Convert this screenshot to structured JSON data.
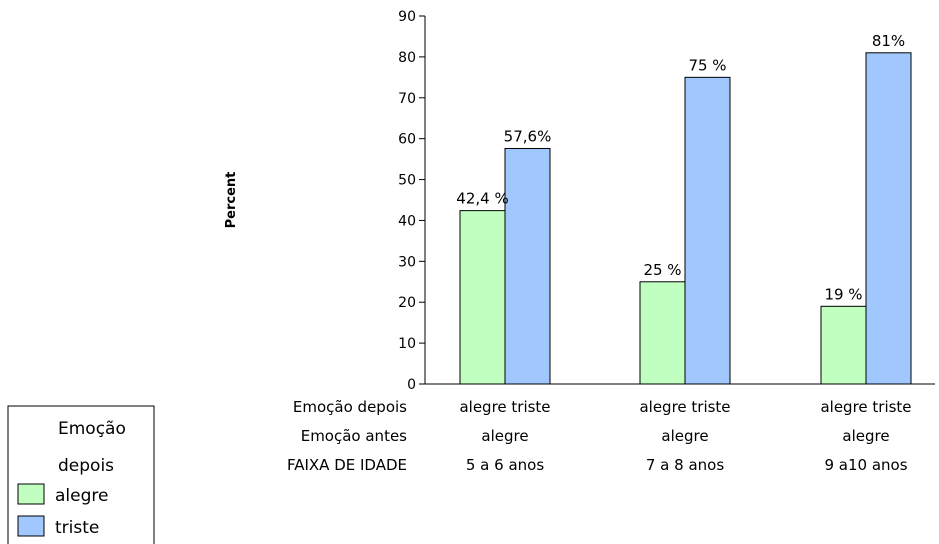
{
  "chart_data": {
    "type": "bar",
    "title": "",
    "ylabel": "Percent",
    "ylim": [
      0,
      90
    ],
    "yticks": [
      0,
      10,
      20,
      30,
      40,
      50,
      60,
      70,
      80,
      90
    ],
    "grid": false,
    "legend_position": "bottom-left",
    "row_headers": [
      "Emoção depois",
      "Emoção antes",
      "FAIXA DE IDADE"
    ],
    "groups": [
      {
        "emocao_depois": "alegre triste",
        "emocao_antes": "alegre",
        "faixa": "5 a 6 anos"
      },
      {
        "emocao_depois": "alegre triste",
        "emocao_antes": "alegre",
        "faixa": "7 a 8 anos"
      },
      {
        "emocao_depois": "alegre triste",
        "emocao_antes": "alegre",
        "faixa": "9 a10 anos"
      }
    ],
    "series": [
      {
        "name": "alegre",
        "color": "#c0ffc0",
        "values": [
          42.4,
          25,
          19
        ],
        "labels": [
          "42,4 %",
          "25 %",
          "19 %"
        ]
      },
      {
        "name": "triste",
        "color": "#a0c8ff",
        "values": [
          57.6,
          75,
          81
        ],
        "labels": [
          "57,6%",
          "75 %",
          "81%"
        ]
      }
    ],
    "legend": {
      "title_line1": "Emoção",
      "title_line2": "depois"
    }
  }
}
